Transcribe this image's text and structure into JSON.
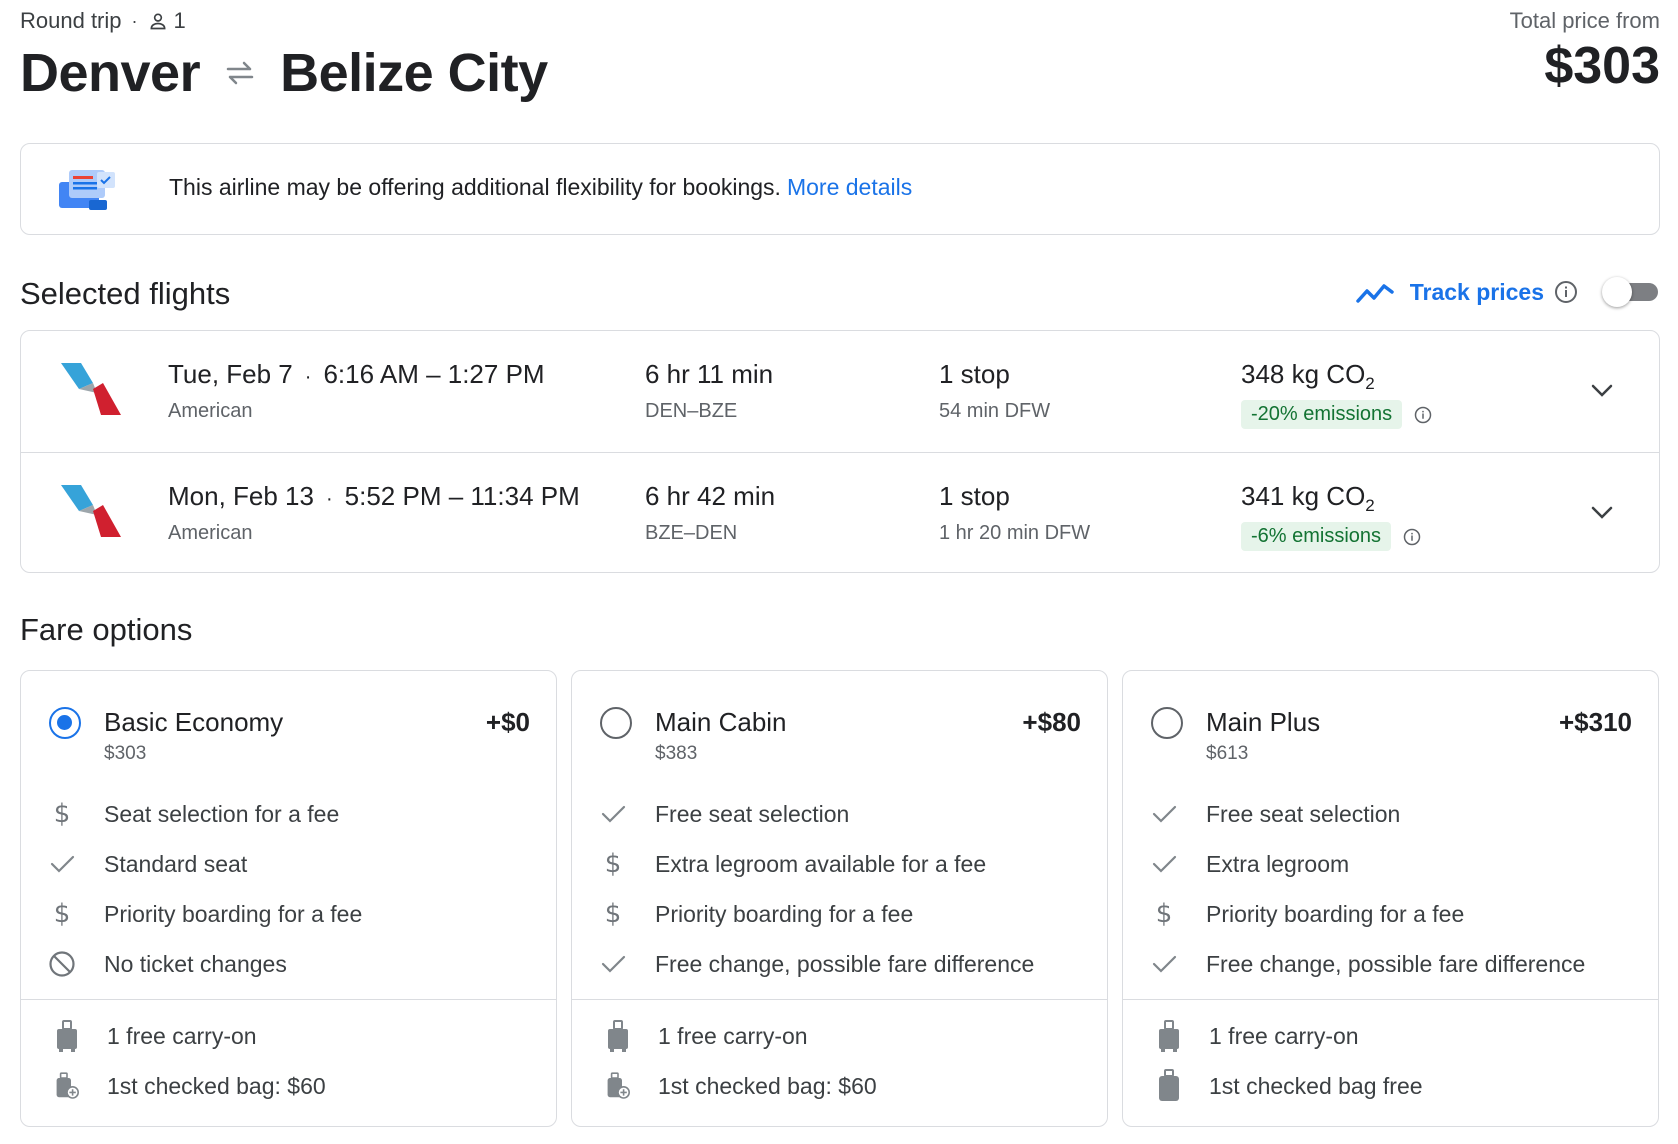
{
  "header": {
    "trip_type": "Round trip",
    "passengers": "1",
    "origin": "Denver",
    "destination": "Belize City",
    "price_label": "Total price from",
    "price": "$303"
  },
  "notice": {
    "text": "This airline may be offering additional flexibility for bookings.",
    "link": "More details"
  },
  "selected": {
    "title": "Selected flights",
    "track_label": "Track prices",
    "track_enabled": false
  },
  "flights": [
    {
      "date": "Tue, Feb 7",
      "times": "6:16 AM – 1:27 PM",
      "airline": "American",
      "duration": "6 hr 11 min",
      "route": "DEN–BZE",
      "stops": "1 stop",
      "layover": "54 min DFW",
      "co2_value": "348 kg CO",
      "co2_sub": "2",
      "emissions": "-20% emissions"
    },
    {
      "date": "Mon, Feb 13",
      "times": "5:52 PM – 11:34 PM",
      "airline": "American",
      "duration": "6 hr 42 min",
      "route": "BZE–DEN",
      "stops": "1 stop",
      "layover": "1 hr 20 min DFW",
      "co2_value": "341 kg CO",
      "co2_sub": "2",
      "emissions": "-6% emissions"
    }
  ],
  "fares": {
    "title": "Fare options",
    "options": [
      {
        "name": "Basic Economy",
        "total": "$303",
        "add": "+$0",
        "selected": true,
        "features": [
          {
            "icon": "dollar-icon",
            "text": "Seat selection for a fee"
          },
          {
            "icon": "check-icon",
            "text": "Standard seat"
          },
          {
            "icon": "dollar-icon",
            "text": "Priority boarding for a fee"
          },
          {
            "icon": "no-symbol-icon",
            "text": "No ticket changes"
          }
        ],
        "bags": [
          {
            "icon": "carry-on-icon",
            "text": "1 free carry-on"
          },
          {
            "icon": "checked-bag-fee-icon",
            "text": "1st checked bag: $60"
          }
        ]
      },
      {
        "name": "Main Cabin",
        "total": "$383",
        "add": "+$80",
        "selected": false,
        "features": [
          {
            "icon": "check-icon",
            "text": "Free seat selection"
          },
          {
            "icon": "dollar-icon",
            "text": "Extra legroom available for a fee"
          },
          {
            "icon": "dollar-icon",
            "text": "Priority boarding for a fee"
          },
          {
            "icon": "check-icon",
            "text": "Free change, possible fare difference"
          }
        ],
        "bags": [
          {
            "icon": "carry-on-icon",
            "text": "1 free carry-on"
          },
          {
            "icon": "checked-bag-fee-icon",
            "text": "1st checked bag: $60"
          }
        ]
      },
      {
        "name": "Main Plus",
        "total": "$613",
        "add": "+$310",
        "selected": false,
        "features": [
          {
            "icon": "check-icon",
            "text": "Free seat selection"
          },
          {
            "icon": "check-icon",
            "text": "Extra legroom"
          },
          {
            "icon": "dollar-icon",
            "text": "Priority boarding for a fee"
          },
          {
            "icon": "check-icon",
            "text": "Free change, possible fare difference"
          }
        ],
        "bags": [
          {
            "icon": "carry-on-icon",
            "text": "1 free carry-on"
          },
          {
            "icon": "checked-bag-icon",
            "text": "1st checked bag free"
          }
        ]
      }
    ]
  },
  "colors": {
    "accent": "#1a73e8",
    "text": "#202124",
    "secondary": "#5f6368",
    "border": "#dadce0",
    "emission_bg": "#e6f4ea",
    "emission_text": "#137333"
  }
}
